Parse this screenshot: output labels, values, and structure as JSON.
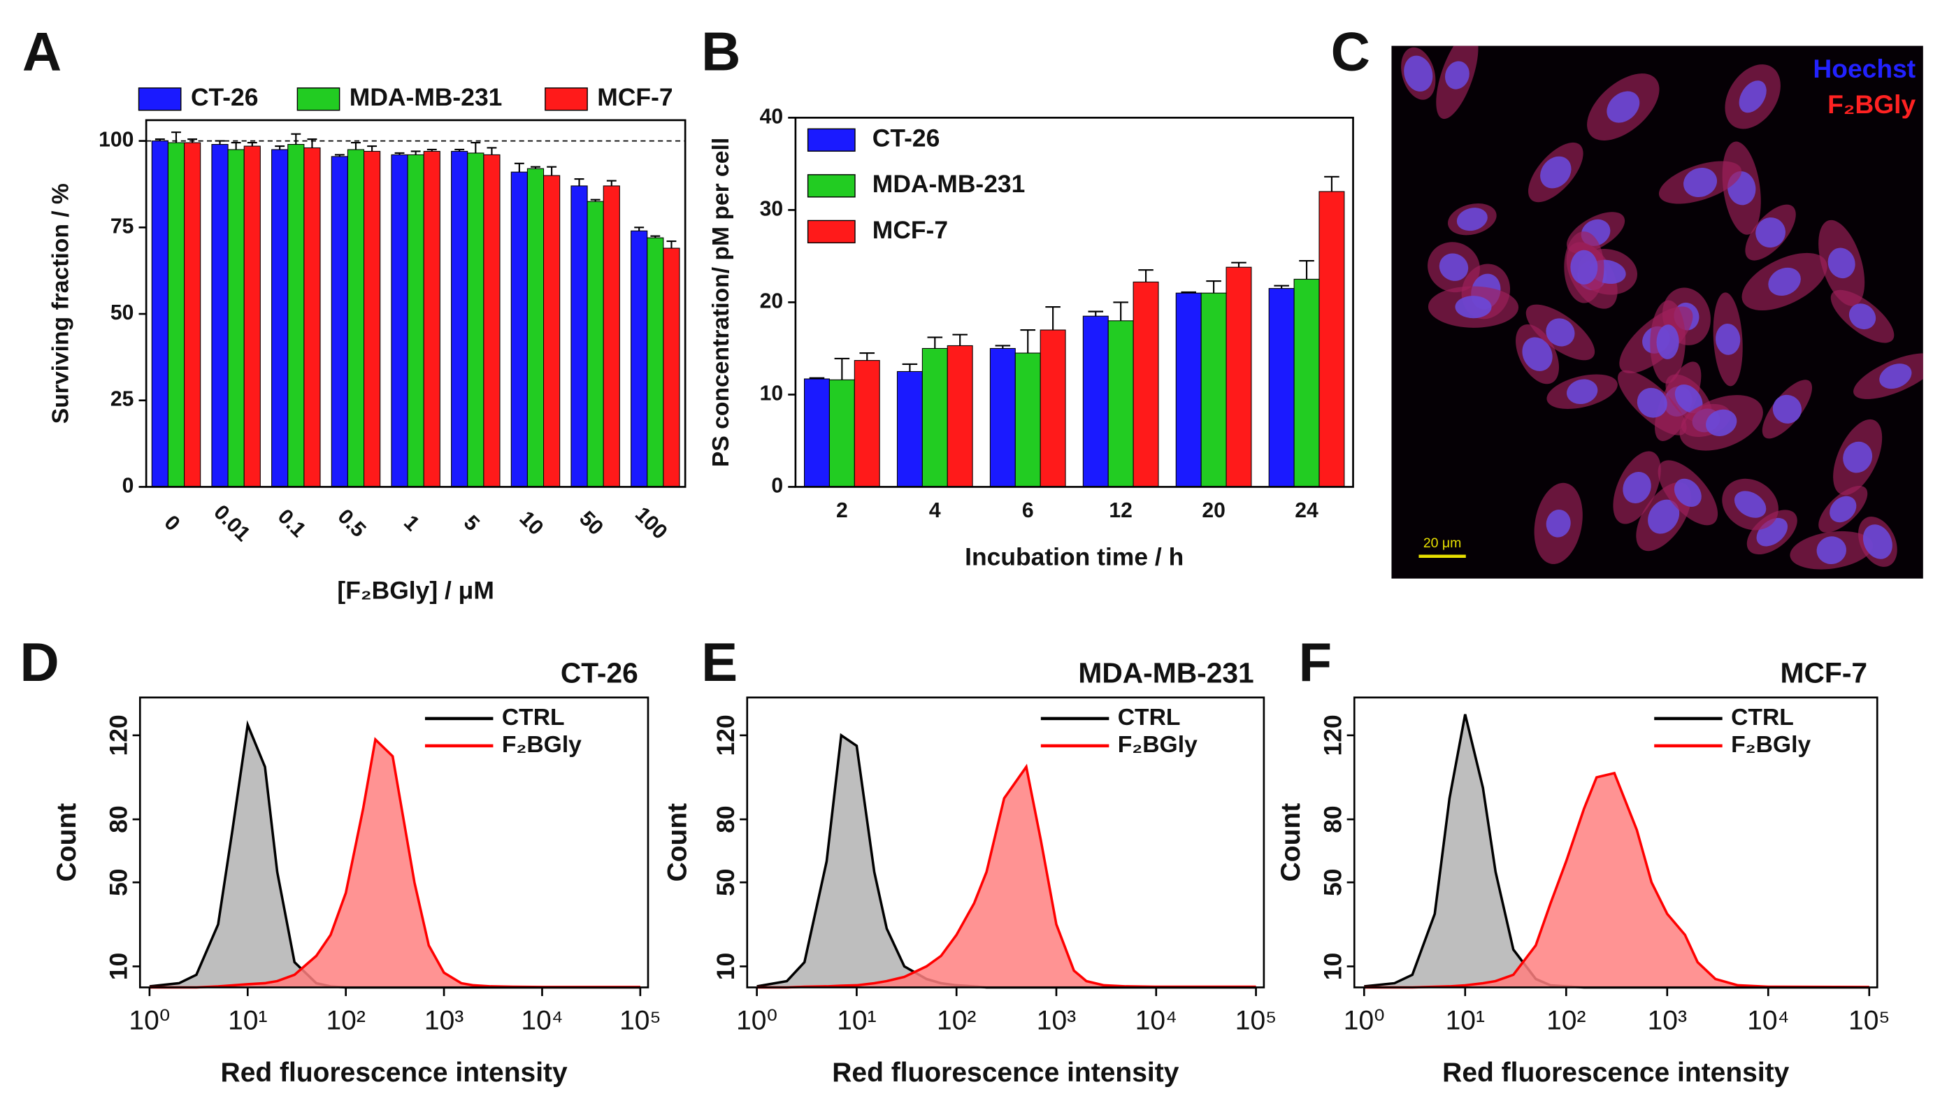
{
  "chart_data": [
    {
      "type": "bar",
      "panel_label": "A",
      "xlabel": "[F₂BGly] / μM",
      "ylabel": "Surviving fraction / %",
      "categories": [
        "0",
        "0.01",
        "0.1",
        "0.5",
        "1",
        "5",
        "10",
        "50",
        "100"
      ],
      "series": [
        {
          "name": "CT-26",
          "color": "#1a1aff",
          "values": [
            100,
            99,
            97.5,
            95.5,
            96,
            97,
            91,
            87,
            74
          ],
          "errors": [
            0.5,
            1,
            1,
            0.5,
            0.5,
            0.5,
            2.5,
            2,
            1
          ]
        },
        {
          "name": "MDA-MB-231",
          "color": "#22cc22",
          "values": [
            99.5,
            97.5,
            99,
            97.5,
            96,
            96.5,
            92,
            82.5,
            72
          ],
          "errors": [
            3,
            2,
            3,
            2,
            1,
            3,
            0.5,
            0.5,
            0.5
          ]
        },
        {
          "name": "MCF-7",
          "color": "#ff1a1a",
          "values": [
            99.5,
            98.5,
            98,
            97,
            97,
            96,
            90,
            87,
            69
          ],
          "errors": [
            1,
            1,
            2.5,
            1.5,
            0.5,
            2,
            2.5,
            1.5,
            2
          ]
        }
      ],
      "ylim": [
        0,
        106
      ],
      "yticks": [
        0,
        25,
        50,
        75,
        100
      ],
      "reference_line": 100,
      "legend": "top"
    },
    {
      "type": "bar",
      "panel_label": "B",
      "xlabel": "Incubation time / h",
      "ylabel": "PS concentration/ pM per cell",
      "categories": [
        "2",
        "4",
        "6",
        "12",
        "20",
        "24"
      ],
      "series": [
        {
          "name": "CT-26",
          "color": "#1a1aff",
          "values": [
            11.7,
            12.5,
            15,
            18.5,
            21,
            21.5
          ],
          "errors": [
            0.1,
            0.8,
            0.3,
            0.5,
            0.1,
            0.3
          ]
        },
        {
          "name": "MDA-MB-231",
          "color": "#22cc22",
          "values": [
            11.6,
            15,
            14.5,
            18,
            21,
            22.5
          ],
          "errors": [
            2.3,
            1.2,
            2.5,
            2,
            1.3,
            2
          ]
        },
        {
          "name": "MCF-7",
          "color": "#ff1a1a",
          "values": [
            13.7,
            15.3,
            17,
            22.2,
            23.8,
            32
          ],
          "errors": [
            0.8,
            1.2,
            2.5,
            1.3,
            0.5,
            1.6
          ]
        }
      ],
      "ylim": [
        0,
        40
      ],
      "yticks": [
        0,
        10,
        20,
        30,
        40
      ],
      "legend": "upper left"
    },
    {
      "type": "image",
      "panel_label": "C",
      "labels": [
        {
          "text": "Hoechst",
          "color": "#2222ff"
        },
        {
          "text": "F₂BGly",
          "color": "#ff2222"
        }
      ],
      "scale_bar": "20 μm"
    },
    {
      "type": "histogram",
      "panel_label": "D",
      "title": "CT-26",
      "xlabel": "Red fluorescence intensity",
      "ylabel": "Count",
      "x": [
        1,
        2,
        3,
        5,
        7,
        10,
        15,
        20,
        30,
        50,
        70,
        100,
        150,
        200,
        300,
        500,
        700,
        1000,
        1500,
        2000,
        3000,
        5000,
        10000,
        100000
      ],
      "series": [
        {
          "name": "CTRL",
          "color": "#000000",
          "fill": "#b3b3b3",
          "values": [
            0.5,
            2,
            6,
            30,
            75,
            125,
            105,
            55,
            12,
            2,
            0.5,
            0,
            0,
            0,
            0,
            0,
            0,
            0,
            0,
            0,
            0,
            0,
            0,
            0
          ]
        },
        {
          "name": "F₂BGly",
          "color": "#ff0000",
          "fill": "#ff8080",
          "values": [
            0,
            0,
            0,
            0.5,
            1,
            1.5,
            2,
            3,
            6,
            15,
            25,
            45,
            85,
            118,
            110,
            50,
            20,
            7,
            2,
            1,
            0.5,
            0.3,
            0.2,
            0.2
          ]
        }
      ],
      "xscale": "log",
      "xlim": [
        0.8,
        120000
      ],
      "xticks": [
        {
          "value": 1,
          "label": "10⁰"
        },
        {
          "value": 10,
          "label": "10¹"
        },
        {
          "value": 100,
          "label": "10²"
        },
        {
          "value": 1000,
          "label": "10³"
        },
        {
          "value": 10000,
          "label": "10⁴"
        },
        {
          "value": 100000,
          "label": "10⁵"
        }
      ],
      "ylim": [
        0,
        138
      ],
      "yticks": [
        10,
        50,
        80,
        120
      ],
      "legend": "upper right"
    },
    {
      "type": "histogram",
      "panel_label": "E",
      "title": "MDA-MB-231",
      "xlabel": "Red fluorescence intensity",
      "ylabel": "Count",
      "x": [
        1,
        2,
        3,
        5,
        7,
        10,
        15,
        20,
        30,
        50,
        70,
        100,
        150,
        200,
        300,
        500,
        700,
        1000,
        1500,
        2000,
        3000,
        5000,
        10000,
        100000
      ],
      "series": [
        {
          "name": "CTRL",
          "color": "#000000",
          "fill": "#b3b3b3",
          "values": [
            0.5,
            3,
            12,
            60,
            120,
            115,
            55,
            28,
            10,
            4,
            2,
            1,
            0.5,
            0,
            0,
            0,
            0,
            0,
            0,
            0,
            0,
            0,
            0,
            0
          ]
        },
        {
          "name": "F₂BGly",
          "color": "#ff0000",
          "fill": "#ff8080",
          "values": [
            0,
            0,
            0.3,
            0.5,
            0.8,
            1,
            2,
            3,
            5,
            10,
            15,
            25,
            40,
            55,
            90,
            105,
            70,
            30,
            8,
            3,
            1,
            0.5,
            0.3,
            0.3
          ]
        }
      ],
      "xscale": "log",
      "xlim": [
        0.8,
        120000
      ],
      "xticks": [
        {
          "value": 1,
          "label": "10⁰"
        },
        {
          "value": 10,
          "label": "10¹"
        },
        {
          "value": 100,
          "label": "10²"
        },
        {
          "value": 1000,
          "label": "10³"
        },
        {
          "value": 10000,
          "label": "10⁴"
        },
        {
          "value": 100000,
          "label": "10⁵"
        }
      ],
      "ylim": [
        0,
        138
      ],
      "yticks": [
        10,
        50,
        80,
        120
      ],
      "legend": "upper right"
    },
    {
      "type": "histogram",
      "panel_label": "F",
      "title": "MCF-7",
      "xlabel": "Red fluorescence intensity",
      "ylabel": "Count",
      "x": [
        1,
        2,
        3,
        5,
        7,
        10,
        15,
        20,
        30,
        50,
        70,
        100,
        150,
        200,
        300,
        500,
        700,
        1000,
        1500,
        2000,
        3000,
        5000,
        10000,
        100000
      ],
      "series": [
        {
          "name": "CTRL",
          "color": "#000000",
          "fill": "#b3b3b3",
          "values": [
            0.5,
            2,
            6,
            35,
            90,
            130,
            95,
            55,
            18,
            4,
            1,
            0.5,
            0,
            0,
            0,
            0,
            0,
            0,
            0,
            0,
            0,
            0,
            0,
            0
          ]
        },
        {
          "name": "F₂BGly",
          "color": "#ff0000",
          "fill": "#ff8080",
          "values": [
            0,
            0,
            0,
            0.3,
            0.5,
            1,
            2,
            3,
            6,
            20,
            40,
            60,
            85,
            100,
            102,
            75,
            50,
            35,
            25,
            12,
            4,
            1,
            0.3,
            0.2
          ]
        }
      ],
      "xscale": "log",
      "xlim": [
        0.8,
        120000
      ],
      "xticks": [
        {
          "value": 1,
          "label": "10⁰"
        },
        {
          "value": 10,
          "label": "10¹"
        },
        {
          "value": 100,
          "label": "10²"
        },
        {
          "value": 1000,
          "label": "10³"
        },
        {
          "value": 10000,
          "label": "10⁴"
        },
        {
          "value": 100000,
          "label": "10⁵"
        }
      ],
      "ylim": [
        0,
        138
      ],
      "yticks": [
        10,
        50,
        80,
        120
      ],
      "legend": "upper right"
    }
  ]
}
